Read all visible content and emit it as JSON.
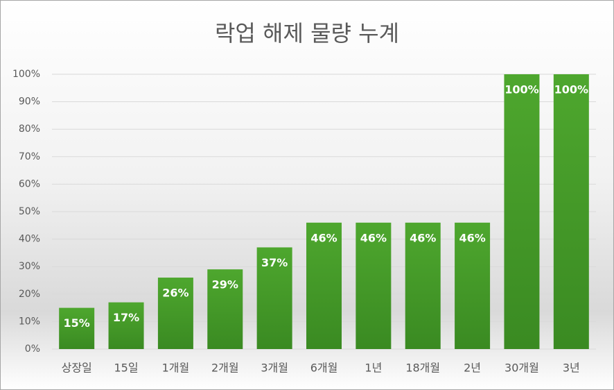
{
  "chart_data": {
    "type": "bar",
    "title": "락업 해제 물량 누계",
    "categories": [
      "상장일",
      "15일",
      "1개월",
      "2개월",
      "3개월",
      "6개월",
      "1년",
      "18개월",
      "2년",
      "30개월",
      "3년"
    ],
    "values": [
      15,
      17,
      26,
      29,
      37,
      46,
      46,
      46,
      46,
      100,
      100
    ],
    "value_labels": [
      "15%",
      "17%",
      "26%",
      "29%",
      "37%",
      "46%",
      "46%",
      "46%",
      "46%",
      "100%",
      "100%"
    ],
    "color": "#4ea72e",
    "ylim": [
      0,
      100
    ],
    "yticks": [
      {
        "value": 0,
        "label": "0%"
      },
      {
        "value": 10,
        "label": "10%"
      },
      {
        "value": 20,
        "label": "20%"
      },
      {
        "value": 30,
        "label": "30%"
      },
      {
        "value": 40,
        "label": "40%"
      },
      {
        "value": 50,
        "label": "50%"
      },
      {
        "value": 60,
        "label": "60%"
      },
      {
        "value": 70,
        "label": "70%"
      },
      {
        "value": 80,
        "label": "80%"
      },
      {
        "value": 90,
        "label": "90%"
      },
      {
        "value": 100,
        "label": "100%"
      }
    ],
    "grid": true
  }
}
